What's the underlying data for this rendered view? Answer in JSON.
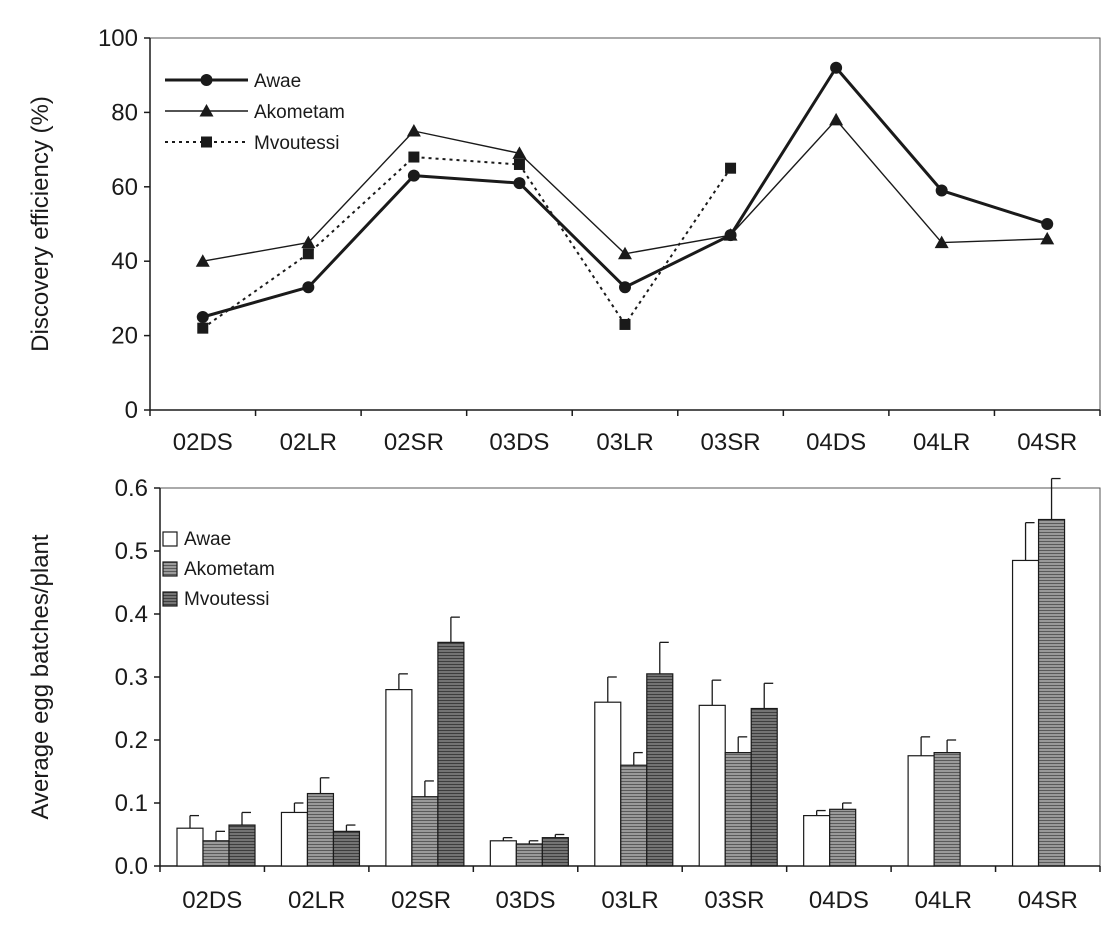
{
  "chart_data": [
    {
      "type": "line",
      "title": "",
      "xlabel": "",
      "ylabel": "Discovery efficiency (%)",
      "ylim": [
        0,
        100
      ],
      "yticks": [
        "0",
        "20",
        "40",
        "60",
        "80",
        "100"
      ],
      "categories": [
        "02DS",
        "02LR",
        "02SR",
        "03DS",
        "03LR",
        "03SR",
        "04DS",
        "04LR",
        "04SR"
      ],
      "grid": false,
      "legend": "top-left",
      "series": [
        {
          "name": "Awae",
          "marker": "circle",
          "style": "solid-thick",
          "color": "#1a1a1a",
          "values": [
            25,
            33,
            63,
            61,
            33,
            47,
            92,
            59,
            50
          ]
        },
        {
          "name": "Akometam",
          "marker": "triangle",
          "style": "solid-thin",
          "color": "#1a1a1a",
          "values": [
            40,
            45,
            75,
            69,
            42,
            47,
            78,
            45,
            46
          ]
        },
        {
          "name": "Mvoutessi",
          "marker": "square",
          "style": "dotted",
          "color": "#1a1a1a",
          "values": [
            22,
            42,
            68,
            66,
            23,
            65,
            null,
            null,
            null
          ]
        }
      ]
    },
    {
      "type": "bar",
      "title": "",
      "xlabel": "",
      "ylabel": "Average egg batches/plant",
      "ylim": [
        0,
        0.6
      ],
      "yticks": [
        "0.0",
        "0.1",
        "0.2",
        "0.3",
        "0.4",
        "0.5",
        "0.6"
      ],
      "categories": [
        "02DS",
        "02LR",
        "02SR",
        "03DS",
        "03LR",
        "03SR",
        "04DS",
        "04LR",
        "04SR"
      ],
      "grid": false,
      "legend": "top-left",
      "error_bars": true,
      "series": [
        {
          "name": "Awae",
          "fill": "#ffffff",
          "values": [
            0.06,
            0.085,
            0.28,
            0.04,
            0.26,
            0.255,
            0.08,
            0.175,
            0.485
          ],
          "errors": [
            0.02,
            0.015,
            0.025,
            0.005,
            0.04,
            0.04,
            0.008,
            0.03,
            0.06
          ]
        },
        {
          "name": "Akometam",
          "fill": "#8a8a8a",
          "values": [
            0.04,
            0.115,
            0.11,
            0.035,
            0.16,
            0.18,
            0.09,
            0.18,
            0.55
          ],
          "errors": [
            0.015,
            0.025,
            0.025,
            0.005,
            0.02,
            0.025,
            0.01,
            0.02,
            0.065
          ]
        },
        {
          "name": "Mvoutessi",
          "fill": "#6e6e6e",
          "values": [
            0.065,
            0.055,
            0.355,
            0.045,
            0.305,
            0.25,
            null,
            null,
            null
          ],
          "errors": [
            0.02,
            0.01,
            0.04,
            0.005,
            0.05,
            0.04,
            null,
            null,
            null
          ]
        }
      ]
    }
  ]
}
